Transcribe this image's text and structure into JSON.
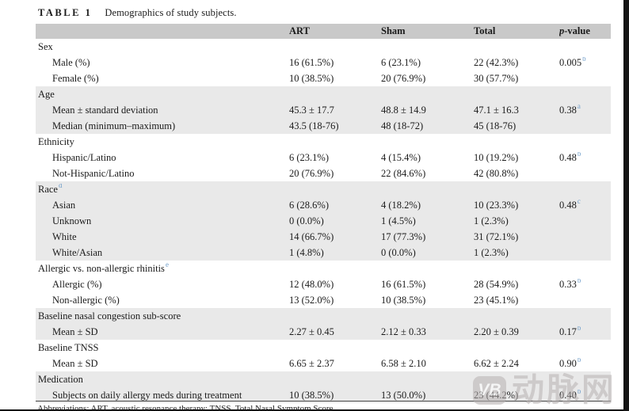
{
  "page": {
    "title_label": "TABLE 1",
    "title_caption": "Demographics of study subjects.",
    "footnote": "Abbreviations: ART, acoustic resonance therapy; TNSS, Total Nasal Symptom Score."
  },
  "table": {
    "columns": [
      "ART",
      "Sham",
      "Total"
    ],
    "p_column": {
      "italic": "p",
      "rest": "-value"
    },
    "sections": [
      {
        "name": "Sex",
        "sup": "",
        "shaded": false,
        "rows": [
          {
            "label": "Male (%)",
            "values": [
              "16 (61.5%)",
              "6 (23.1%)",
              "22 (42.3%)"
            ],
            "p": "0.005",
            "p_sup": "b"
          },
          {
            "label": "Female (%)",
            "values": [
              "10 (38.5%)",
              "20 (76.9%)",
              "30 (57.7%)"
            ],
            "p": "",
            "p_sup": ""
          }
        ]
      },
      {
        "name": "Age",
        "sup": "",
        "shaded": true,
        "rows": [
          {
            "label": "Mean ± standard deviation",
            "values": [
              "45.3 ± 17.7",
              "48.8 ± 14.9",
              "47.1 ± 16.3"
            ],
            "p": "0.38",
            "p_sup": "a"
          },
          {
            "label": "Median (minimum–maximum)",
            "values": [
              "43.5 (18-76)",
              "48 (18-72)",
              "45 (18-76)"
            ],
            "p": "",
            "p_sup": ""
          }
        ]
      },
      {
        "name": "Ethnicity",
        "sup": "",
        "shaded": false,
        "rows": [
          {
            "label": "Hispanic/Latino",
            "values": [
              "6 (23.1%)",
              "4 (15.4%)",
              "10 (19.2%)"
            ],
            "p": "0.48",
            "p_sup": "b"
          },
          {
            "label": "Not-Hispanic/Latino",
            "values": [
              "20 (76.9%)",
              "22 (84.6%)",
              "42 (80.8%)"
            ],
            "p": "",
            "p_sup": ""
          }
        ]
      },
      {
        "name": "Race",
        "sup": "d",
        "shaded": true,
        "rows": [
          {
            "label": "Asian",
            "values": [
              "6 (28.6%)",
              "4 (18.2%)",
              "10 (23.3%)"
            ],
            "p": "0.48",
            "p_sup": "c"
          },
          {
            "label": "Unknown",
            "values": [
              "0 (0.0%)",
              "1 (4.5%)",
              "1 (2.3%)"
            ],
            "p": "",
            "p_sup": ""
          },
          {
            "label": "White",
            "values": [
              "14 (66.7%)",
              "17 (77.3%)",
              "31 (72.1%)"
            ],
            "p": "",
            "p_sup": ""
          },
          {
            "label": "White/Asian",
            "values": [
              "1 (4.8%)",
              "0 (0.0%)",
              "1 (2.3%)"
            ],
            "p": "",
            "p_sup": ""
          }
        ]
      },
      {
        "name": "Allergic vs. non-allergic rhinitis",
        "sup": "e",
        "shaded": false,
        "rows": [
          {
            "label": "Allergic (%)",
            "values": [
              "12 (48.0%)",
              "16 (61.5%)",
              "28 (54.9%)"
            ],
            "p": "0.33",
            "p_sup": "b"
          },
          {
            "label": "Non-allergic (%)",
            "values": [
              "13 (52.0%)",
              "10 (38.5%)",
              "23 (45.1%)"
            ],
            "p": "",
            "p_sup": ""
          }
        ]
      },
      {
        "name": "Baseline nasal congestion sub-score",
        "sup": "",
        "shaded": true,
        "rows": [
          {
            "label": "Mean ± SD",
            "values": [
              "2.27 ± 0.45",
              "2.12 ± 0.33",
              "2.20 ± 0.39"
            ],
            "p": "0.17",
            "p_sup": "b"
          }
        ]
      },
      {
        "name": "Baseline TNSS",
        "sup": "",
        "shaded": false,
        "rows": [
          {
            "label": "Mean ± SD",
            "values": [
              "6.65 ± 2.37",
              "6.58 ± 2.10",
              "6.62 ± 2.24"
            ],
            "p": "0.90",
            "p_sup": "b"
          }
        ]
      },
      {
        "name": "Medication",
        "sup": "",
        "shaded": true,
        "rows": [
          {
            "label": "Subjects on daily allergy meds during treatment",
            "values": [
              "10 (38.5%)",
              "13 (50.0%)",
              "23 (44.2%)"
            ],
            "p": "0.40",
            "p_sup": "b"
          }
        ]
      }
    ]
  },
  "watermark": {
    "logo_text": "VB",
    "cn_text": "动脉网"
  },
  "colors": {
    "header_bg": "#c9c9c9",
    "band_bg": "#e9e9e9",
    "superscript": "#6f9dc9",
    "text": "#1b1b1b"
  }
}
